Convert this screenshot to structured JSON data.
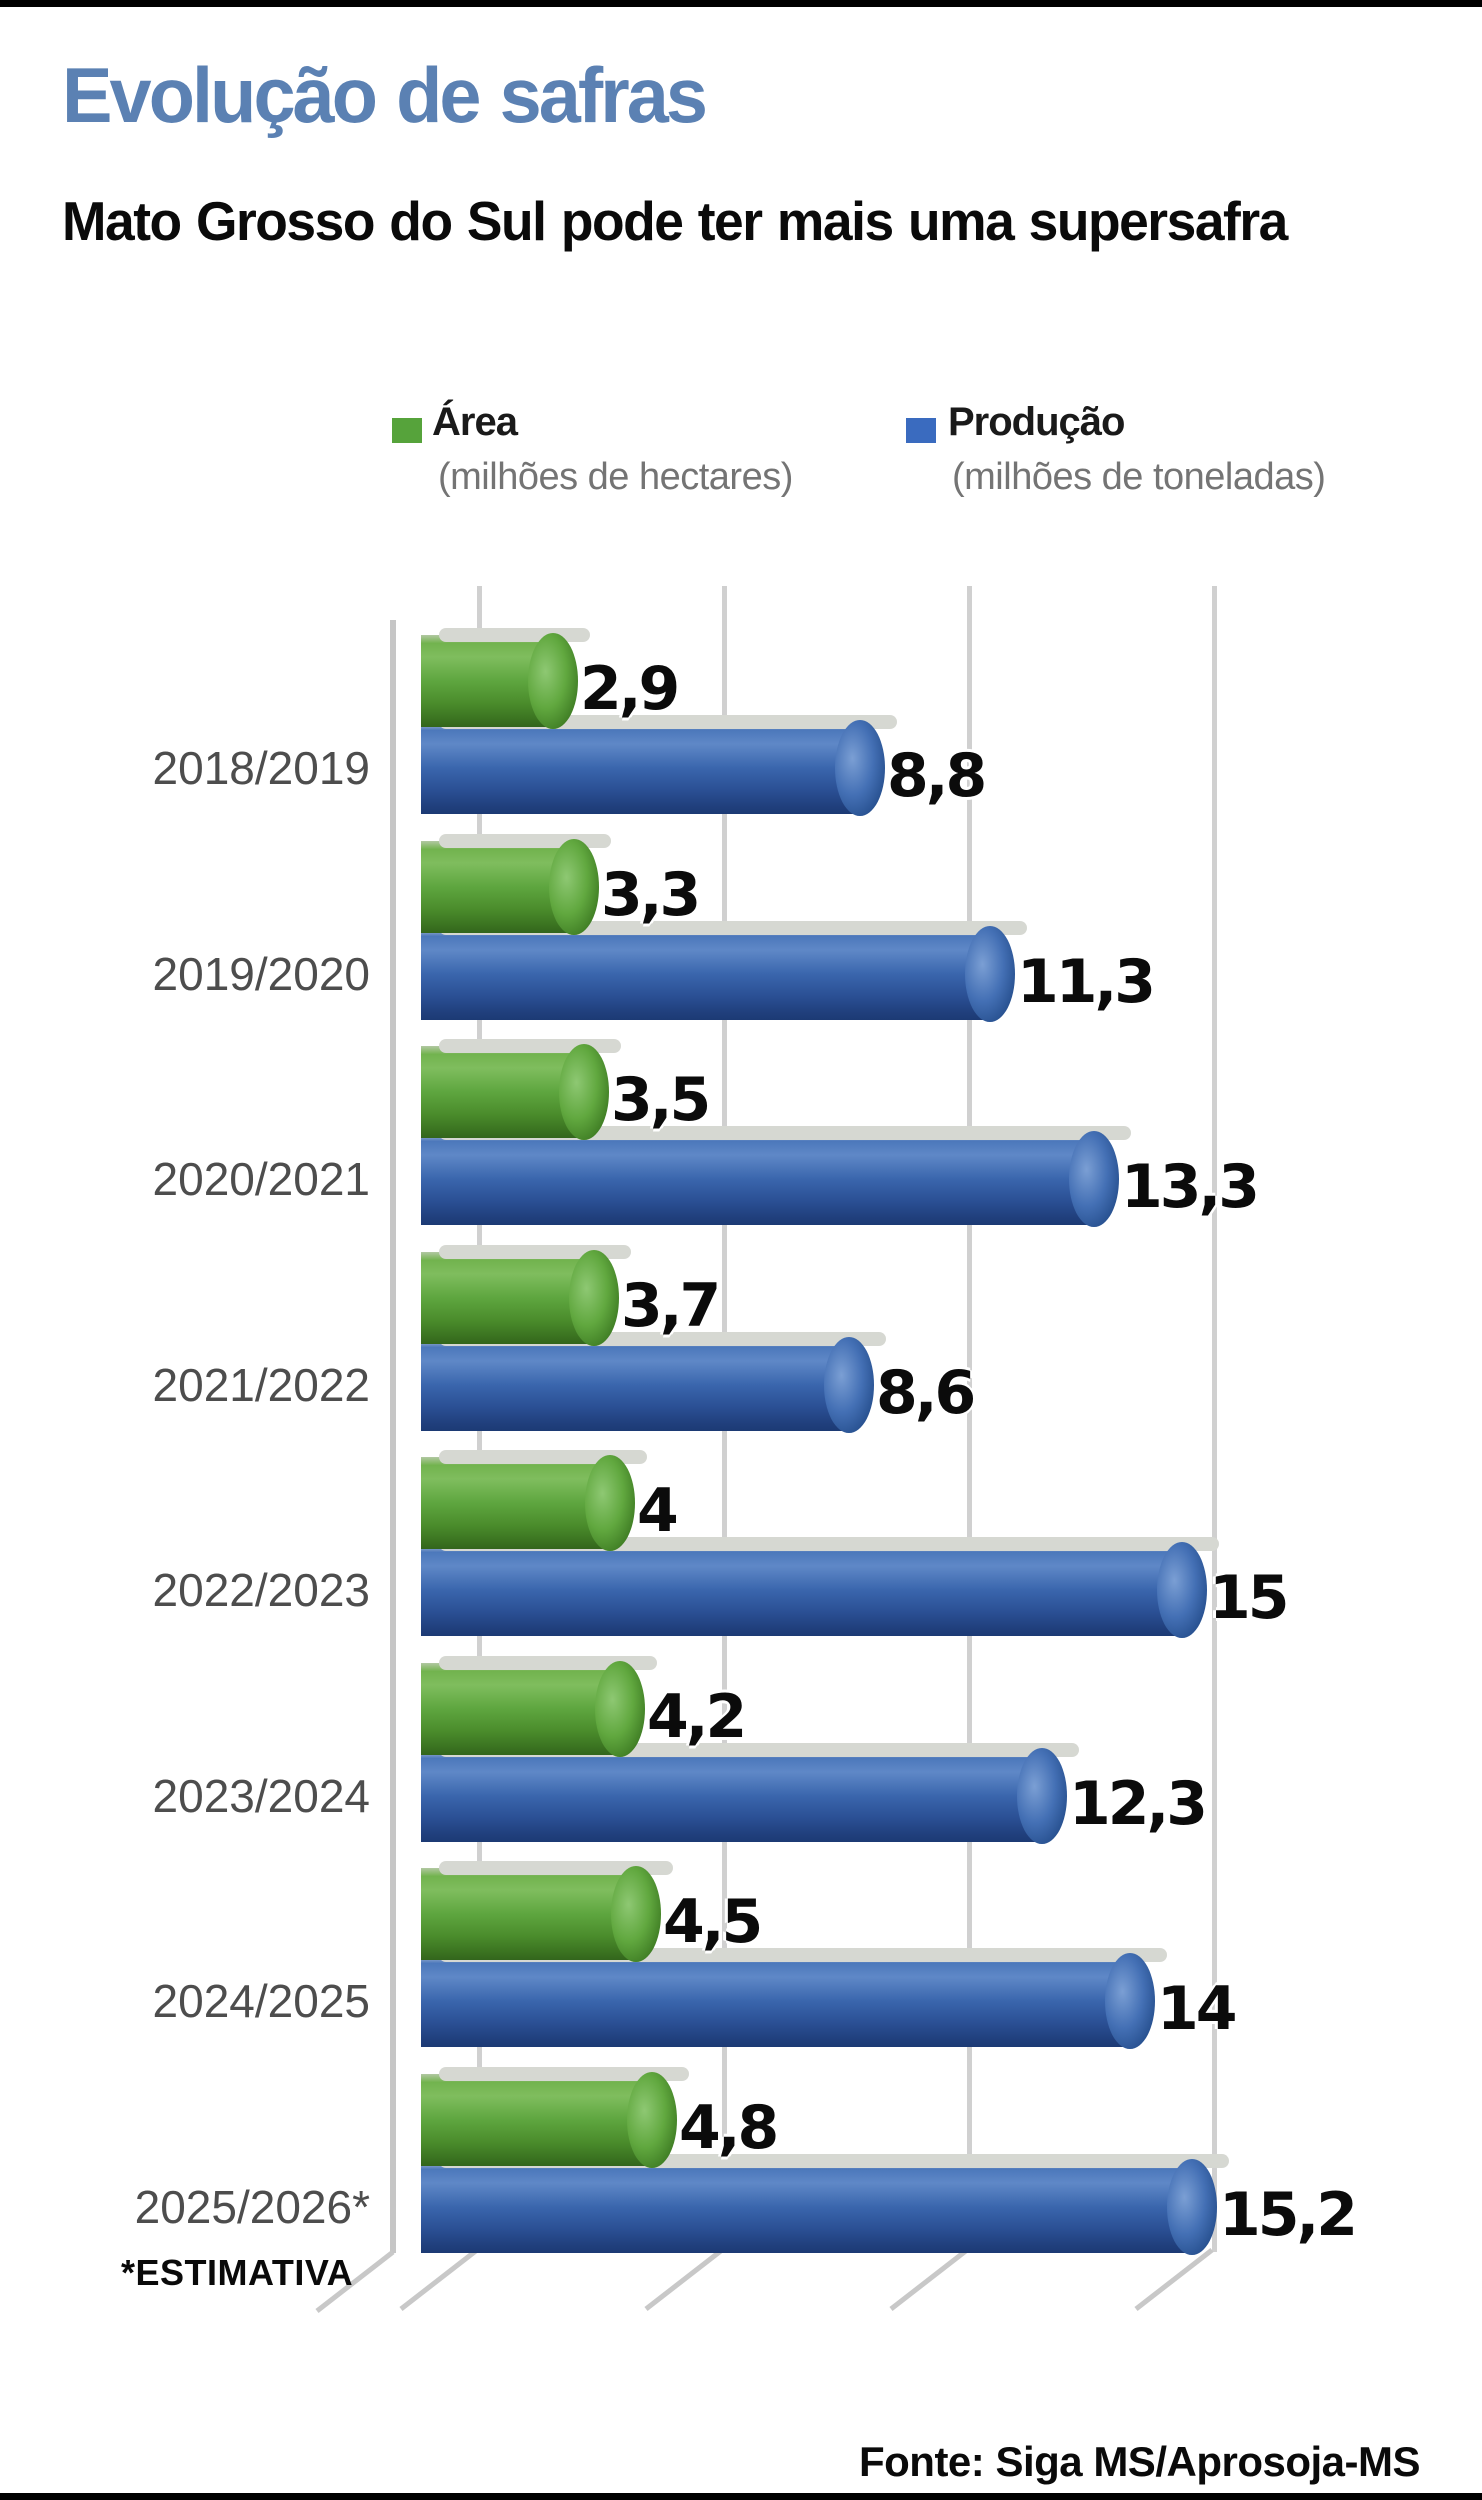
{
  "page": {
    "title": "Evolução de safras",
    "subtitle": "Mato Grosso do Sul pode ter mais uma supersafra",
    "footnote": "*ESTIMATIVA",
    "source": "Fonte: Siga MS/Aprosoja-MS",
    "title_color": "#5b81b3"
  },
  "legend": {
    "entries": [
      {
        "label": "Área",
        "caption": "(milhões de hectares)",
        "color": "#56a33b"
      },
      {
        "label": "Produção",
        "caption": "(milhões de toneladas)",
        "color": "#3a6bbf"
      }
    ]
  },
  "chart_data": {
    "type": "bar",
    "orientation": "horizontal",
    "grid": true,
    "xlim": [
      0,
      16
    ],
    "categories": [
      "2018/2019",
      "2019/2020",
      "2020/2021",
      "2021/2022",
      "2022/2023",
      "2023/2024",
      "2024/2025",
      "2025/2026*"
    ],
    "series": [
      {
        "name": "Área (milhões de hectares)",
        "color": "#56a33b",
        "values": [
          2.9,
          3.3,
          3.5,
          3.7,
          4.0,
          4.2,
          4.5,
          4.8
        ],
        "labels": [
          "2,9",
          "3,3",
          "3,5",
          "3,7",
          "4",
          "4,2",
          "4,5",
          "4,8"
        ]
      },
      {
        "name": "Produção (milhões de toneladas)",
        "color": "#2f5ba3",
        "values": [
          8.8,
          11.3,
          13.3,
          8.6,
          15.0,
          12.3,
          14.0,
          15.2
        ],
        "labels": [
          "8,8",
          "11,3",
          "13,3",
          "8,6",
          "15",
          "12,3",
          "14",
          "15,2"
        ]
      }
    ]
  }
}
